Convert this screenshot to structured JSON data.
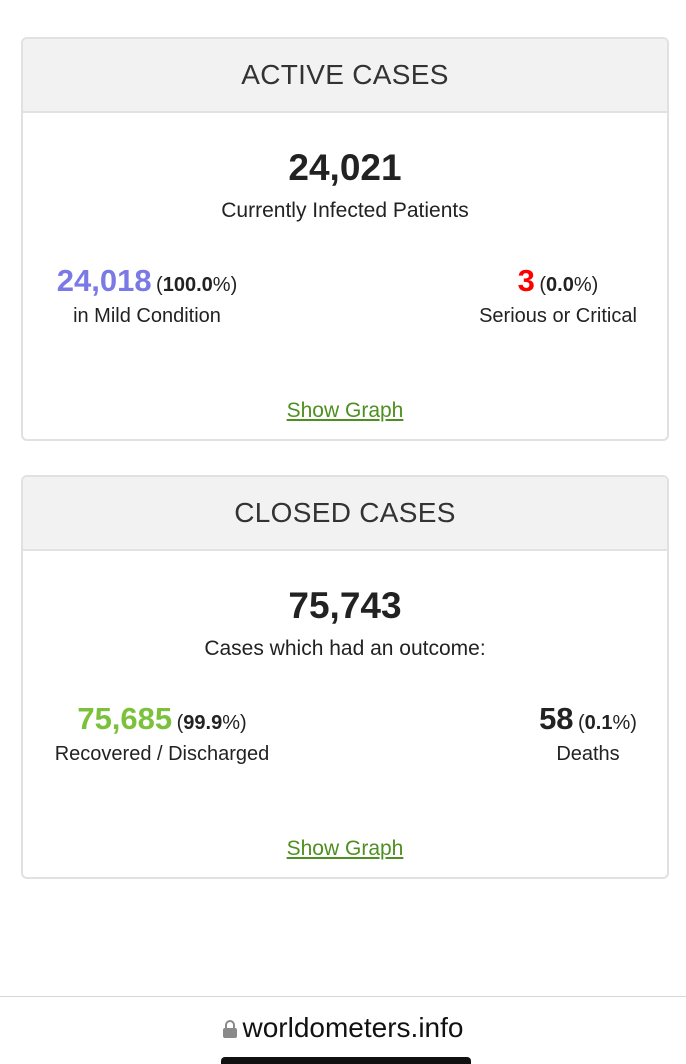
{
  "active_cases": {
    "header": "ACTIVE CASES",
    "total": "24,021",
    "subtitle": "Currently Infected Patients",
    "mild": {
      "value": "24,018",
      "percent": "100.0",
      "caption": "in Mild Condition",
      "color": "#7a79e6"
    },
    "serious": {
      "value": "3",
      "percent": "0.0",
      "caption": "Serious or Critical",
      "color": "#ff0000"
    },
    "show_graph_label": "Show Graph"
  },
  "closed_cases": {
    "header": "CLOSED CASES",
    "total": "75,743",
    "subtitle": "Cases which had an outcome:",
    "recovered": {
      "value": "75,685",
      "percent": "99.9",
      "caption": "Recovered / Discharged",
      "color": "#7cc13c"
    },
    "deaths": {
      "value": "58",
      "percent": "0.1",
      "caption": "Deaths",
      "color": "#222222"
    },
    "show_graph_label": "Show Graph"
  },
  "browser": {
    "url": "worldometers.info",
    "lock_icon": "lock-icon"
  },
  "colors": {
    "link": "#4e8f21"
  }
}
